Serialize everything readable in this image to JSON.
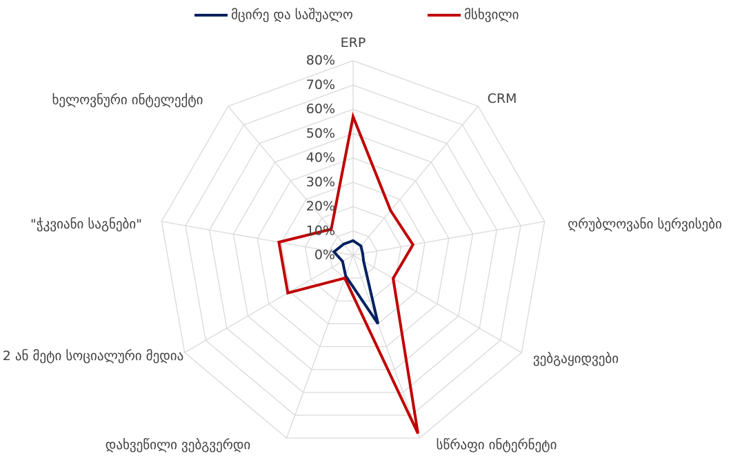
{
  "chart_data": {
    "type": "radar",
    "categories": [
      "ERP",
      "CRM",
      "ღრუბლოვანი სერვისები",
      "ვებგაყიდვები",
      "სწრაფი ინტერნეტი",
      "დახვეწილი ვებგვერდი",
      "2 ან მეტი სოციალური მედია",
      "\"ჭკვიანი საგნები\"",
      "ხელოვნური ინტელექტი"
    ],
    "series": [
      {
        "name": "მცირე და საშუალო",
        "color": "#002060",
        "values": [
          6,
          5,
          4,
          5,
          30,
          9,
          5,
          8,
          6
        ]
      },
      {
        "name": "მსხვილი",
        "color": "#c00000",
        "values": [
          57,
          24,
          25,
          19,
          78,
          10,
          31,
          31,
          14
        ]
      }
    ],
    "ylim": [
      0,
      80
    ],
    "yticks": [
      {
        "value": 0,
        "label": "0%"
      },
      {
        "value": 10,
        "label": "10%"
      },
      {
        "value": 20,
        "label": "20%"
      },
      {
        "value": 30,
        "label": "30%"
      },
      {
        "value": 40,
        "label": "40%"
      },
      {
        "value": 50,
        "label": "50%"
      },
      {
        "value": 60,
        "label": "60%"
      },
      {
        "value": 70,
        "label": "70%"
      },
      {
        "value": 80,
        "label": "80%"
      }
    ],
    "grid": true,
    "legend": "top"
  }
}
